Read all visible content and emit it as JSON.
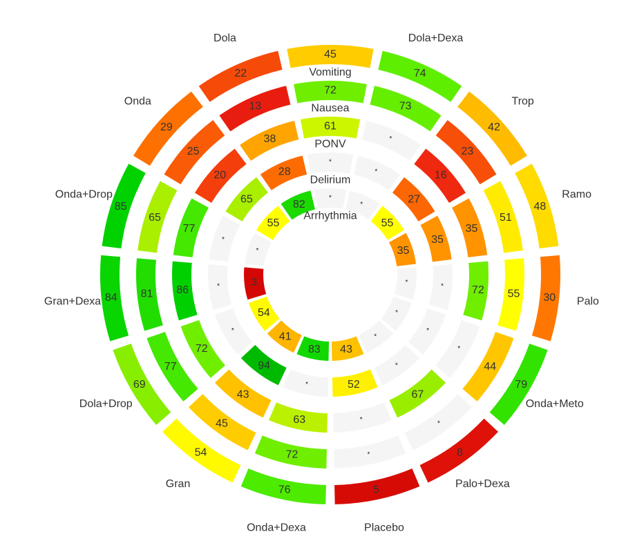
{
  "chart_data": {
    "type": "radial-heatmap",
    "treatments": [
      "Dola+Dexa",
      "Trop",
      "Ramo",
      "Palo",
      "Onda+Meto",
      "Palo+Dexa",
      "Placebo",
      "Onda+Dexa",
      "Gran",
      "Dola+Drop",
      "Gran+Dexa",
      "Onda+Drop",
      "Onda",
      "Dola"
    ],
    "rings": [
      {
        "name": "Vomiting",
        "values": [
          74,
          42,
          48,
          30,
          79,
          8,
          5,
          76,
          54,
          69,
          84,
          85,
          29,
          22
        ]
      },
      {
        "name": "Nausea",
        "values": [
          73,
          23,
          51,
          55,
          44,
          null,
          null,
          72,
          45,
          77,
          81,
          65,
          25,
          13
        ]
      },
      {
        "name": "PONV",
        "values": [
          null,
          16,
          35,
          72,
          null,
          67,
          null,
          63,
          43,
          72,
          86,
          77,
          20,
          38
        ]
      },
      {
        "name": "Delirium",
        "values": [
          null,
          27,
          35,
          null,
          null,
          null,
          52,
          null,
          94,
          null,
          null,
          null,
          65,
          28
        ]
      },
      {
        "name": "Arrhythmia",
        "values": [
          null,
          55,
          35,
          null,
          null,
          null,
          43,
          83,
          41,
          54,
          3,
          null,
          55,
          82
        ]
      }
    ],
    "missing_symbol": "*",
    "label_values": {
      "vomiting_center": "45",
      "nausea_center": "72",
      "ponv_center": "61",
      "delirium_center": "*",
      "arrhythmia_center": "*"
    },
    "color_scale": {
      "low": "#cc0000",
      "mid": "#ffff00",
      "high": "#00cc00",
      "missing": "#f5f5f5"
    }
  }
}
